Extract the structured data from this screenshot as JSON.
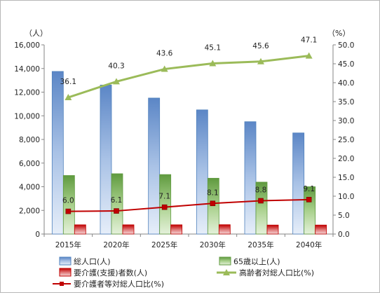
{
  "chart_data": {
    "type": "bar",
    "categories": [
      "2015年",
      "2020年",
      "2025年",
      "2030年",
      "2035年",
      "2040年"
    ],
    "y_left": {
      "unit": "（人）",
      "min": 0,
      "max": 16000,
      "step": 2000,
      "ticks": [
        "0",
        "2,000",
        "4,000",
        "6,000",
        "8,000",
        "10,000",
        "12,000",
        "14,000",
        "16,000"
      ]
    },
    "y_right": {
      "unit": "（%）",
      "min": 0,
      "max": 50,
      "step": 5,
      "ticks": [
        "0.0",
        "5.0",
        "10.0",
        "15.0",
        "20.0",
        "25.0",
        "30.0",
        "35.0",
        "40.0",
        "45.0",
        "50.0"
      ]
    },
    "series": [
      {
        "name": "総人口(人)",
        "kind": "bar",
        "axis": "left",
        "color": "#4f81bd",
        "values": [
          13750,
          12600,
          11500,
          10500,
          9500,
          8550
        ]
      },
      {
        "name": "65歳以上(人)",
        "kind": "bar",
        "axis": "left",
        "color": "#70ad47",
        "values": [
          4950,
          5100,
          5030,
          4720,
          4390,
          4000
        ]
      },
      {
        "name": "要介護(支援)者数(人)",
        "kind": "bar",
        "axis": "left",
        "color": "#c00000",
        "values": [
          780,
          780,
          780,
          790,
          760,
          760
        ]
      },
      {
        "name": "高齢者対総人口比(%)",
        "kind": "line",
        "axis": "right",
        "color": "#9bbb59",
        "marker": "triangle",
        "values": [
          36.1,
          40.3,
          43.6,
          45.1,
          45.6,
          47.1
        ],
        "labels": [
          "36.1",
          "40.3",
          "43.6",
          "45.1",
          "45.6",
          "47.1"
        ]
      },
      {
        "name": "要介護者等対総人口比(%)",
        "kind": "line",
        "axis": "right",
        "color": "#c00000",
        "marker": "square",
        "values": [
          6.0,
          6.1,
          7.1,
          8.1,
          8.8,
          9.1
        ],
        "labels": [
          "6.0",
          "6.1",
          "7.1",
          "8.1",
          "8.8",
          "9.1"
        ]
      }
    ],
    "legend_position": "bottom",
    "grid": false
  }
}
